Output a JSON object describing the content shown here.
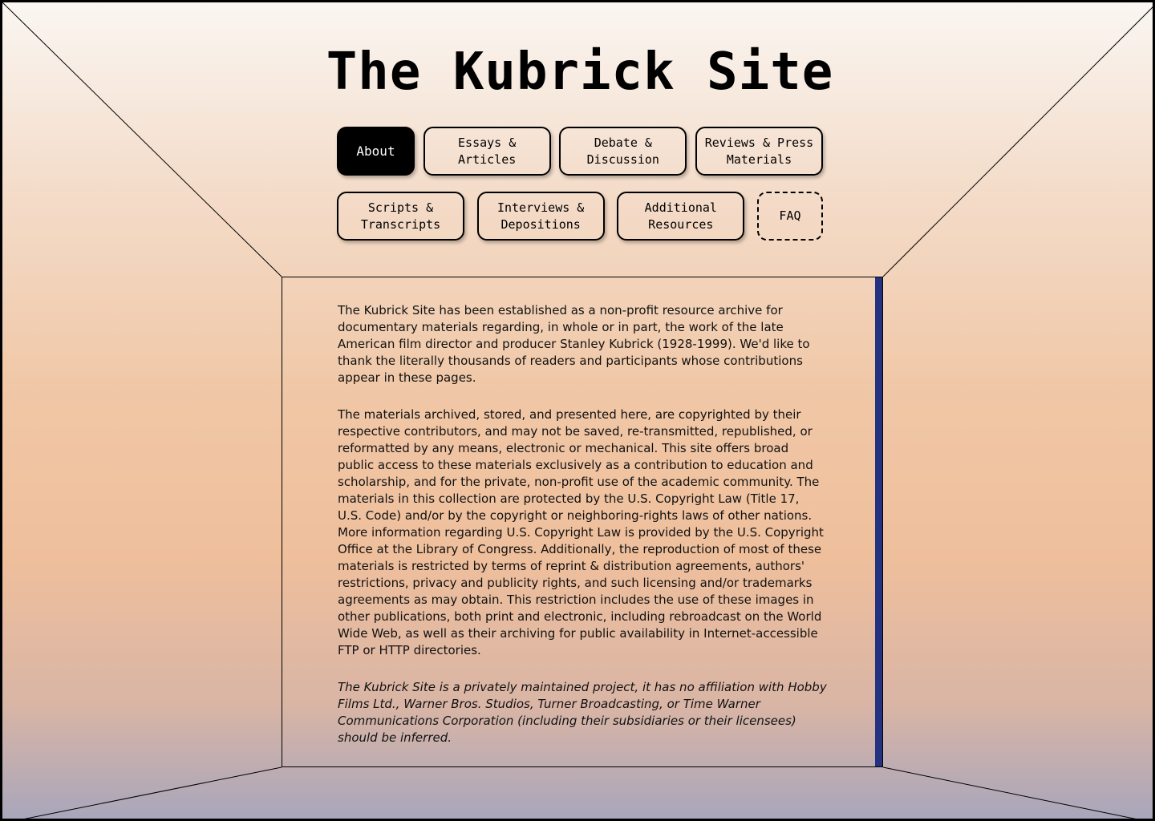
{
  "site": {
    "title": "The Kubrick Site"
  },
  "nav": {
    "row1": [
      {
        "label": "About",
        "active": true
      },
      {
        "label": "Essays &\nArticles"
      },
      {
        "label": "Debate &\nDiscussion"
      },
      {
        "label": "Reviews & Press\nMaterials"
      }
    ],
    "row2": [
      {
        "label": "Scripts &\nTranscripts"
      },
      {
        "label": "Interviews &\nDepositions"
      },
      {
        "label": "Additional\nResources"
      },
      {
        "label": "FAQ"
      }
    ]
  },
  "content": {
    "p1": "The Kubrick Site has been established as a non-profit resource archive for documentary materials regarding, in whole or in part, the work of the late American film director and producer Stanley Kubrick (1928-1999). We'd like to thank the literally thousands of readers and participants whose contributions appear in these pages.",
    "p2": "The materials archived, stored, and presented here, are copyrighted by their respective contributors, and may not be saved, re-transmitted, republished, or reformatted by any means, electronic or mechanical. This site offers broad public access to these materials exclusively as a contribution to education and scholarship, and for the private, non-profit use of the academic community. The materials in this collection are protected by the U.S. Copyright Law (Title 17, U.S. Code) and/or by the copyright or neighboring-rights laws of other nations. More information regarding U.S. Copyright Law is provided by the U.S. Copyright Office at the Library of Congress. Additionally, the reproduction of most of these materials is restricted by terms of reprint & distribution agreements, authors' restrictions, privacy and publicity rights, and such licensing and/or trademarks agreements as may obtain. This restriction includes the use of these images in other publications, both print and electronic, including rebroadcast on the World Wide Web, as well as their archiving for public availability in Internet-accessible FTP or HTTP directories.",
    "p3": "The Kubrick Site is a privately maintained project, it has no affiliation with Hobby Films Ltd., Warner Bros. Studios, Turner Broadcasting, or Time Warner Communications Corporation (including their subsidiaries or their licensees) should be inferred."
  },
  "colors": {
    "scrollbar": "#24337f",
    "active_button": "#000000"
  }
}
